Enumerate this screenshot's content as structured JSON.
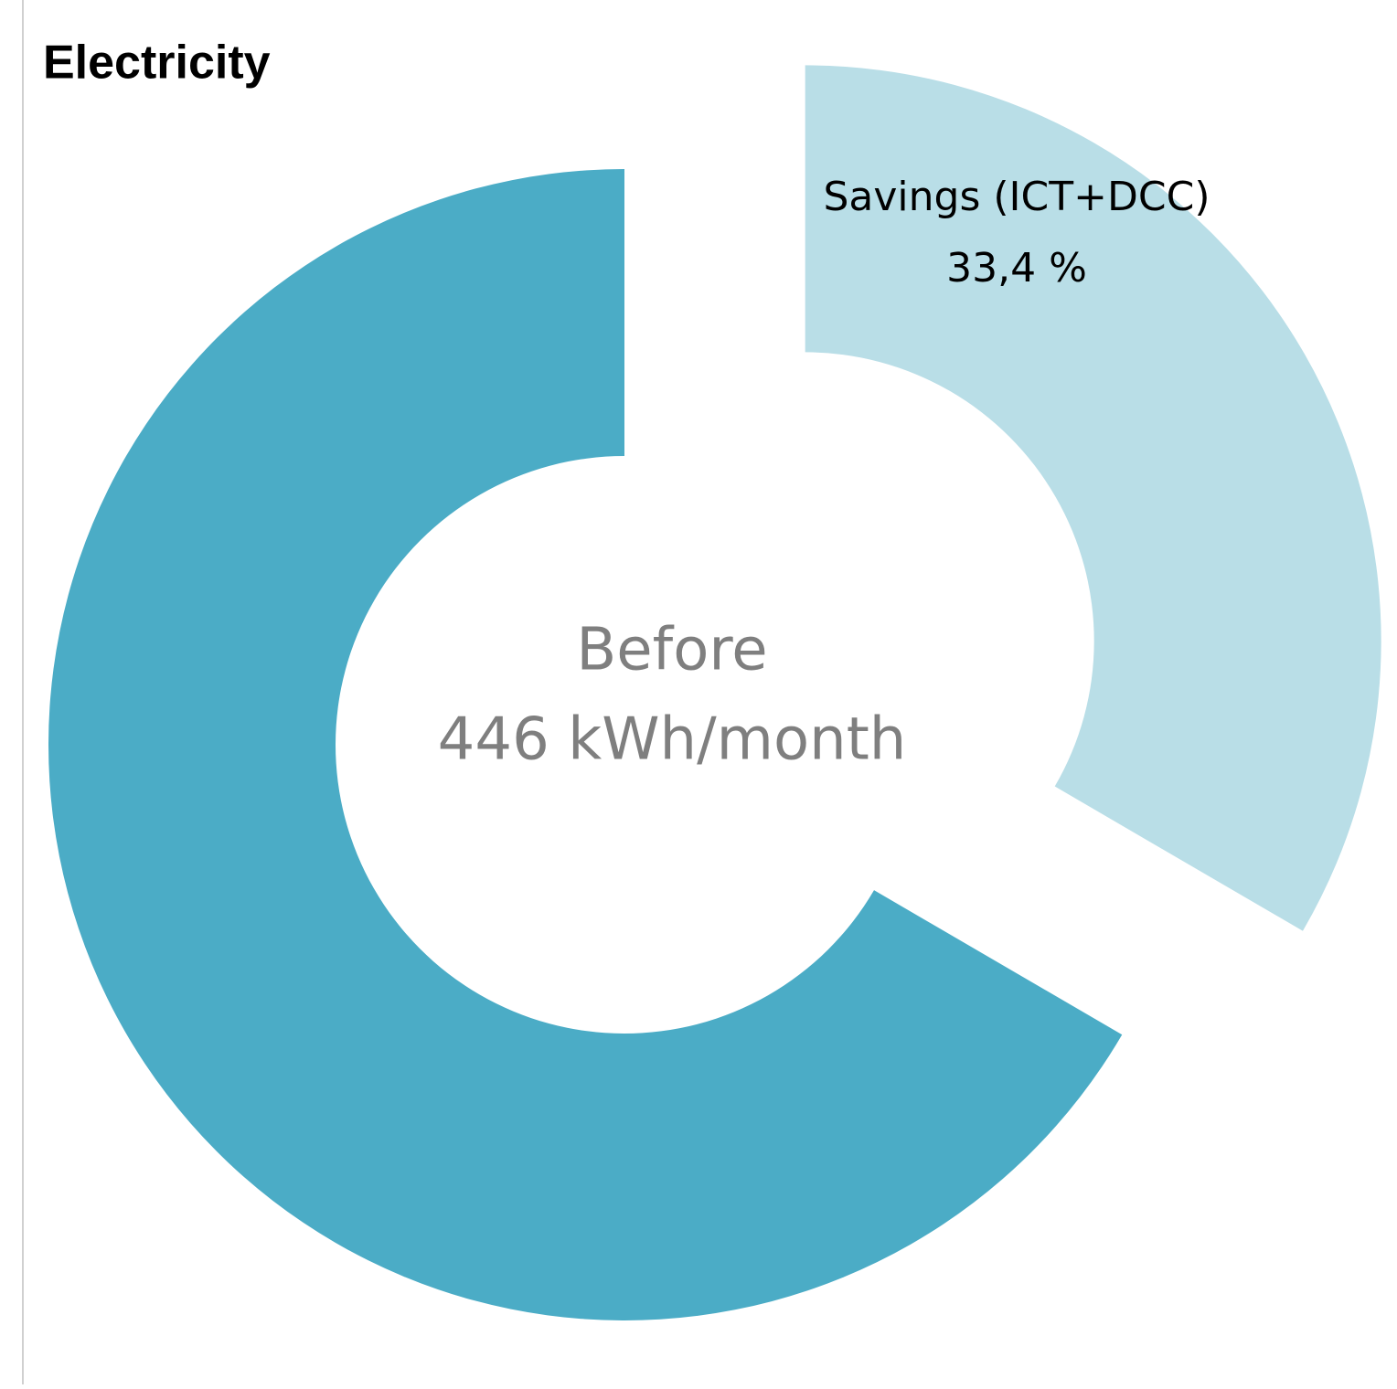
{
  "chart_data": {
    "type": "donut",
    "title": "Electricity",
    "categories": [
      "Savings (ICT+DCC)",
      null
    ],
    "values": [
      33.4,
      66.6
    ],
    "value_labels": [
      "33,4 %",
      null
    ],
    "colors": [
      "#b9dee7",
      "#4bacc6"
    ],
    "center_label": [
      "Before",
      "446 kWh/month"
    ]
  }
}
